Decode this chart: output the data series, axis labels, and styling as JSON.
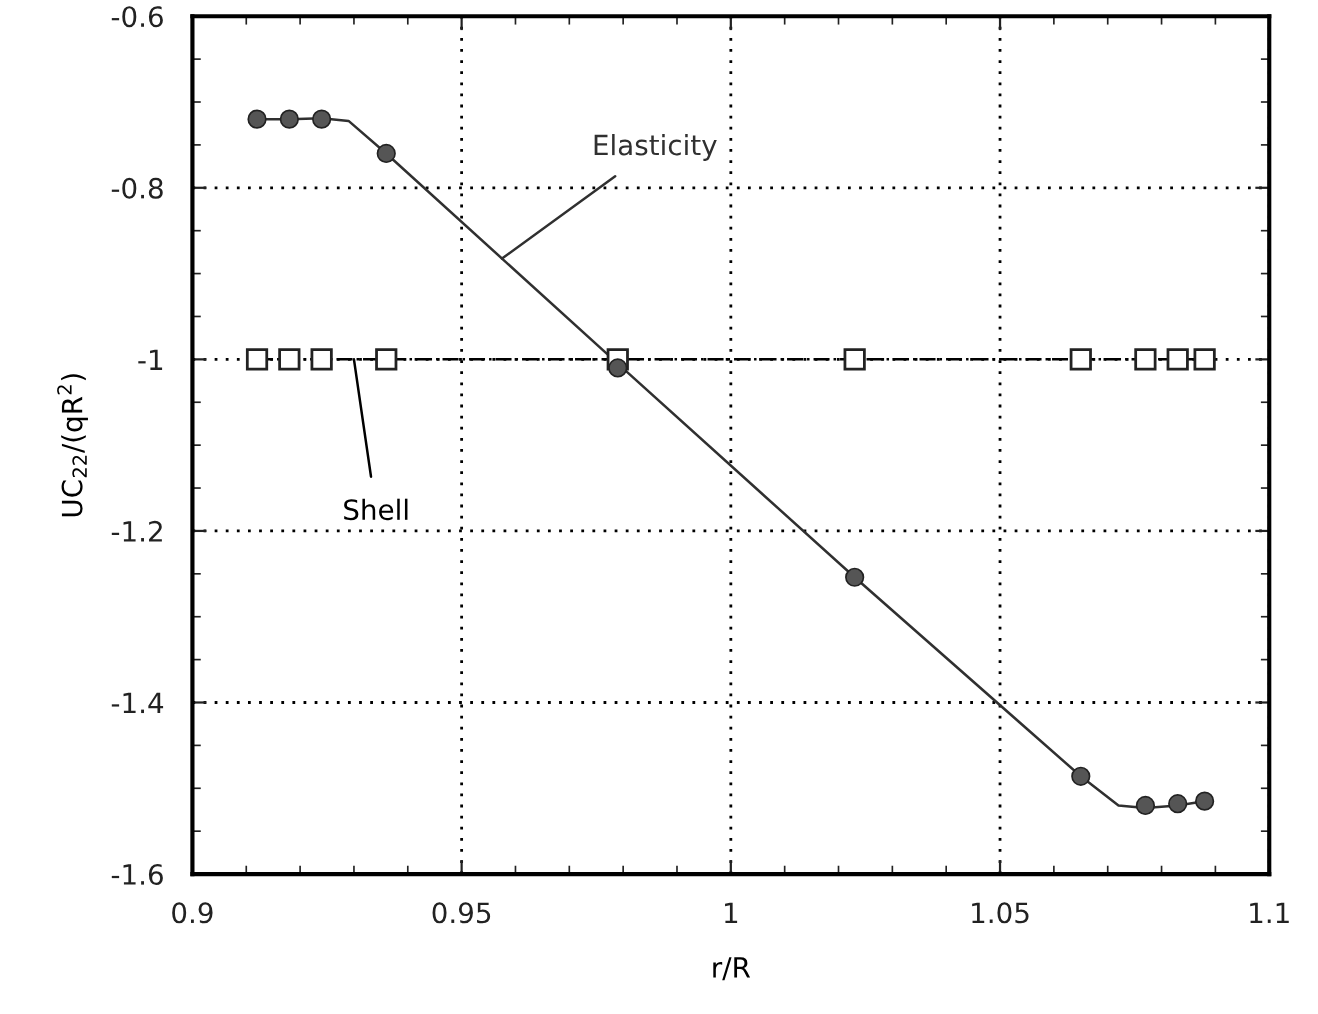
{
  "chart_data": {
    "type": "scatter",
    "xlabel": "r/R",
    "ylabel": "UC$_{22}$/(qR$^{2}$)",
    "xlim": [
      0.9,
      1.1
    ],
    "xticks": [
      0.9,
      0.95,
      1,
      1.05,
      1.1
    ],
    "ylim": [
      -1.6,
      -0.6
    ],
    "yticks": [
      -1.6,
      -1.4,
      -1.2,
      -1,
      -0.8,
      -0.6
    ],
    "grid": true,
    "legend": false,
    "series": [
      {
        "type": "line",
        "name": "Elasticity",
        "color": "#303030",
        "marker": "none",
        "line_style": "solid",
        "x": [
          0.912,
          0.918,
          0.924,
          0.929,
          0.936,
          0.979,
          1.023,
          1.065,
          1.072,
          1.077,
          1.083,
          1.088
        ],
        "values": [
          -0.72,
          -0.72,
          -0.719,
          -0.722,
          -0.76,
          -1.005,
          -1.254,
          -1.486,
          -1.52,
          -1.523,
          -1.52,
          -1.515
        ]
      },
      {
        "color": "#555555",
        "marker": "circle",
        "x": [
          0.912,
          0.918,
          0.924,
          0.936,
          0.979,
          1.023,
          1.065,
          1.077,
          1.083,
          1.088
        ],
        "values": [
          -0.72,
          -0.72,
          -0.72,
          -0.76,
          -1.01,
          -1.254,
          -1.486,
          -1.52,
          -1.518,
          -1.515
        ]
      },
      {
        "type": "line",
        "name": "Shell",
        "color": "#000000",
        "marker": "square",
        "line_style": "dashed",
        "x": [
          0.912,
          0.918,
          0.924,
          0.936,
          0.979,
          1.023,
          1.065,
          1.077,
          1.083,
          1.088
        ],
        "values": [
          -1,
          -1,
          -1,
          -1,
          -1,
          -1,
          -1,
          -1,
          -1,
          -1
        ]
      }
    ]
  }
}
